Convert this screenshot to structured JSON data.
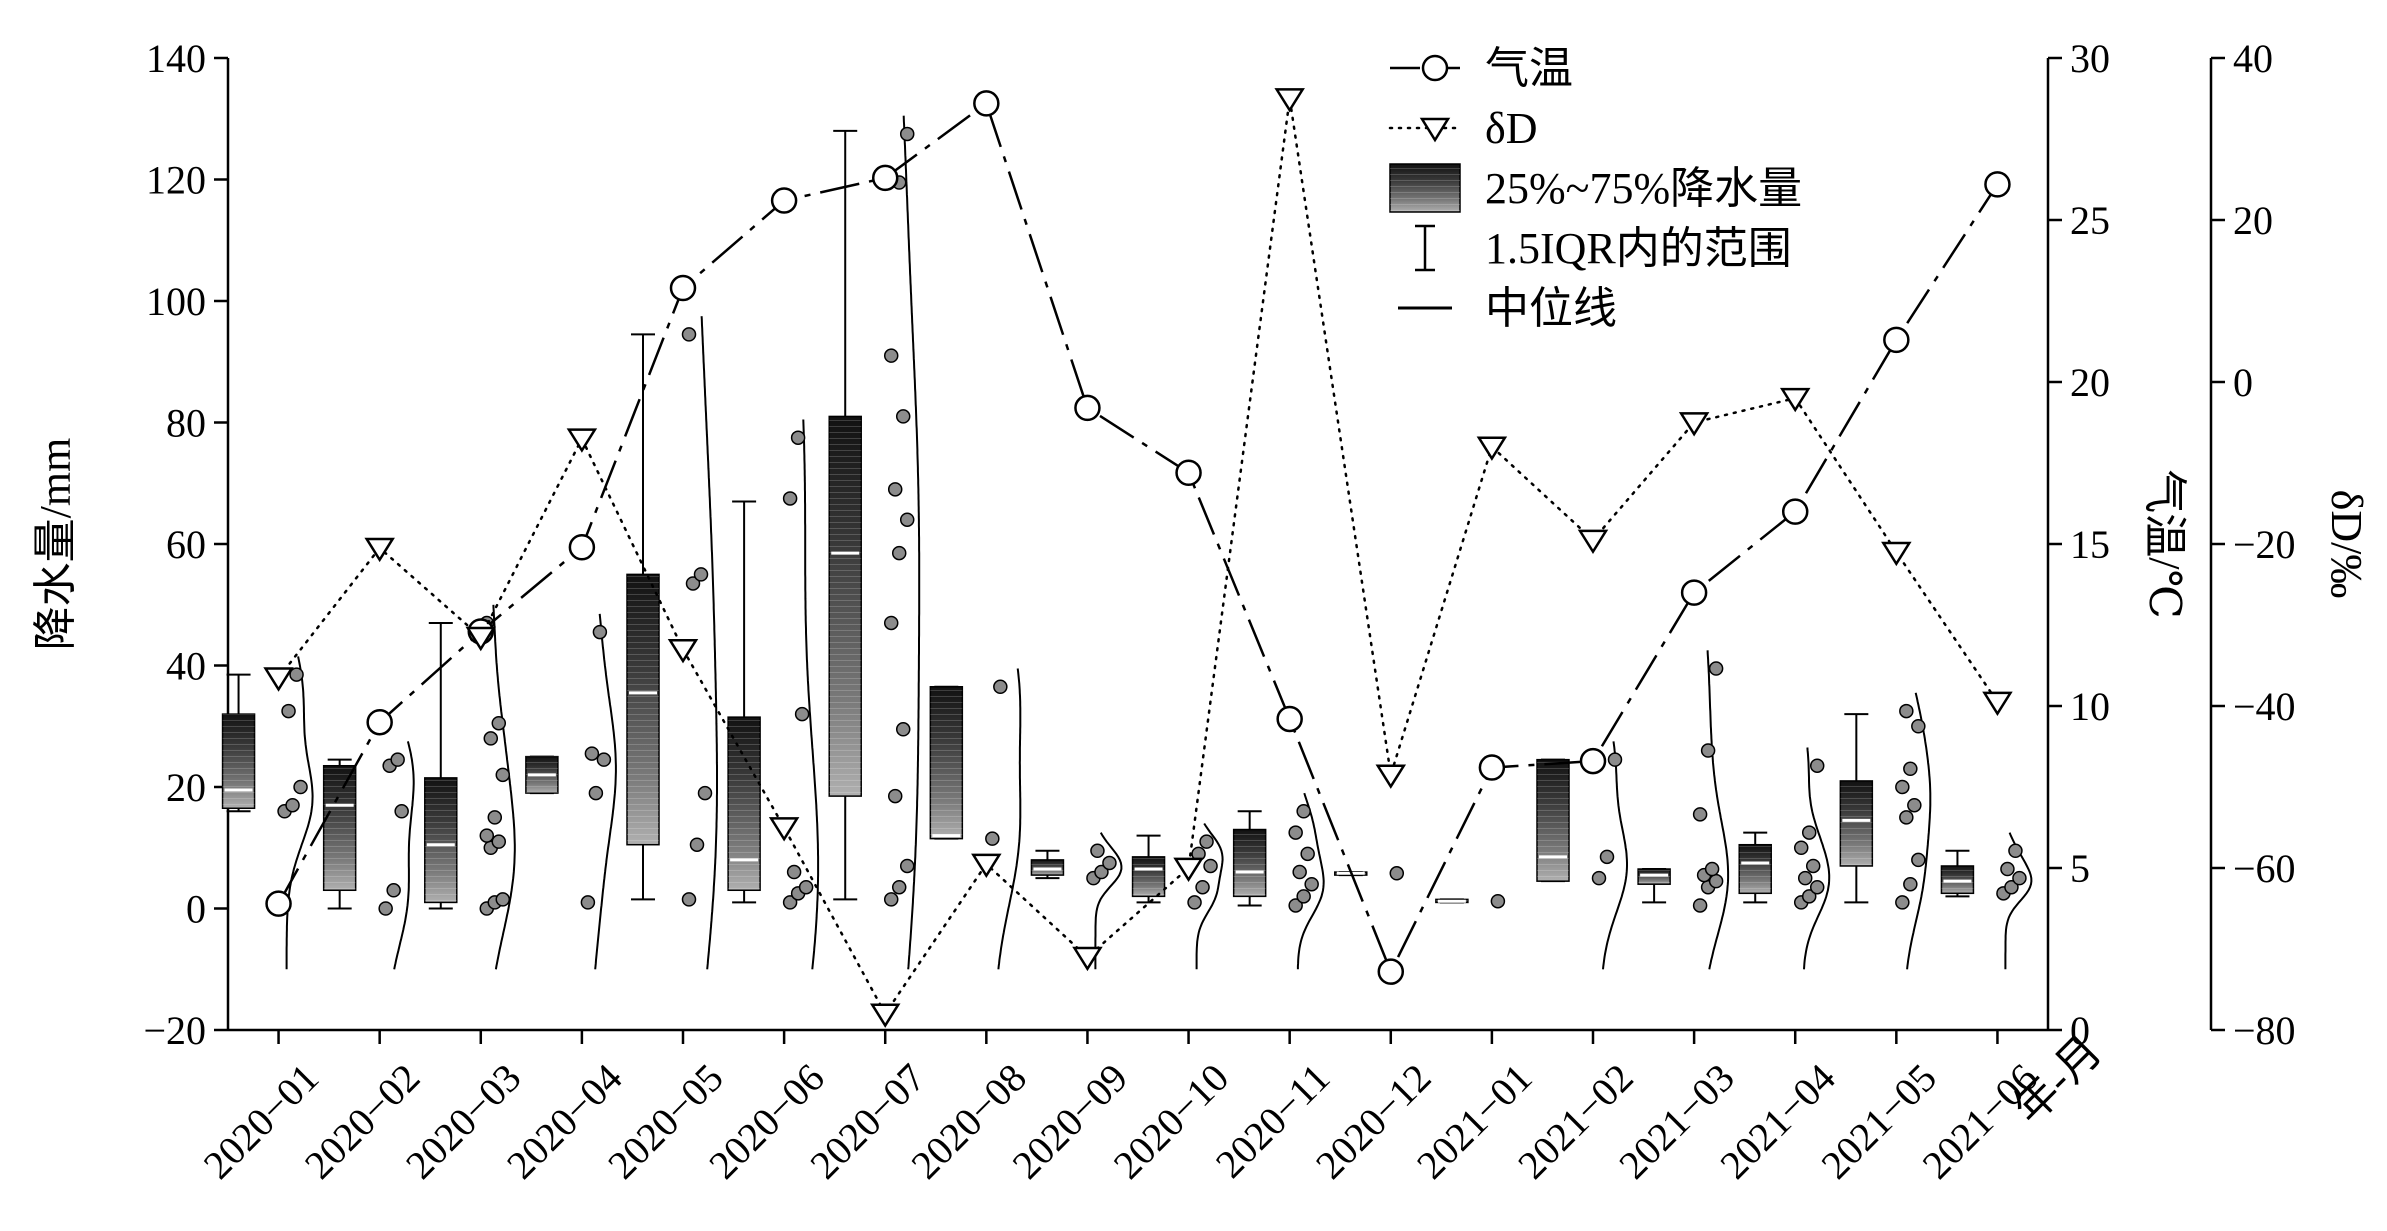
{
  "chart_data": {
    "type": "box+line",
    "title": "",
    "categories": [
      "2020-01",
      "2020-02",
      "2020-03",
      "2020-04",
      "2020-05",
      "2020-06",
      "2020-07",
      "2020-08",
      "2020-09",
      "2020-10",
      "2020-11",
      "2020-12",
      "2021-01",
      "2021-02",
      "2021-03",
      "2021-04",
      "2021-05",
      "2021-06"
    ],
    "xlabel": "年-月",
    "ylabel_left": "降水量/mm",
    "ylabel_right1": "气温/℃",
    "ylabel_right2": "δD/‰",
    "ylim_left": [
      -20,
      140
    ],
    "ylim_right1": [
      0,
      30
    ],
    "ylim_right2": [
      -80,
      40
    ],
    "yticks_left": [
      "-20",
      "0",
      "20",
      "40",
      "60",
      "80",
      "100",
      "120",
      "140"
    ],
    "yticks_right1": [
      "0",
      "5",
      "10",
      "15",
      "20",
      "25",
      "30"
    ],
    "yticks_right2": [
      "-80",
      "-60",
      "-40",
      "-20",
      "0",
      "20",
      "40"
    ],
    "legend": {
      "placement": "top-center",
      "items": [
        "气温",
        "δD",
        "25%~75%降水量",
        "1.5IQR内的范围",
        "中位线"
      ]
    },
    "precip_boxes": [
      {
        "q1": 16.5,
        "median": 19.5,
        "q3": 32,
        "wlo": 16,
        "whi": 38.5,
        "points": [
          16,
          17,
          20,
          32.5,
          38.5
        ]
      },
      {
        "q1": 3,
        "median": 17,
        "q3": 23.5,
        "wlo": 0,
        "whi": 24.5,
        "points": [
          0,
          3,
          16,
          23.5,
          24.5
        ]
      },
      {
        "q1": 1,
        "median": 10.5,
        "q3": 21.5,
        "wlo": 0,
        "whi": 47,
        "points": [
          0,
          1,
          1.5,
          10,
          11,
          12,
          15,
          22,
          28,
          30.5,
          47
        ]
      },
      {
        "q1": 19,
        "median": 22,
        "q3": 25,
        "wlo": 19,
        "whi": 25,
        "points": [
          1,
          19,
          24.5,
          25.5,
          45.5
        ]
      },
      {
        "q1": 10.5,
        "median": 35.5,
        "q3": 55,
        "wlo": 1.5,
        "whi": 94.5,
        "points": [
          1.5,
          10.5,
          19,
          53.5,
          55,
          94.5
        ]
      },
      {
        "q1": 3,
        "median": 8,
        "q3": 31.5,
        "wlo": 1,
        "whi": 67,
        "points": [
          1,
          2.5,
          3.5,
          6,
          32,
          67.5,
          77.5
        ]
      },
      {
        "q1": 18.5,
        "median": 58.5,
        "q3": 81,
        "wlo": 1.5,
        "whi": 128,
        "points": [
          1.5,
          3.5,
          7,
          18.5,
          29.5,
          47,
          58.5,
          64,
          69,
          81,
          91,
          119.5,
          127.5
        ]
      },
      {
        "q1": 11.5,
        "median": 12,
        "q3": 36.5,
        "wlo": 11.5,
        "whi": 36.5,
        "points": [
          11.5,
          36.5
        ]
      },
      {
        "q1": 5.5,
        "median": 6.5,
        "q3": 8,
        "wlo": 5,
        "whi": 9.5,
        "points": [
          5,
          6,
          7.5,
          9.5
        ]
      },
      {
        "q1": 2,
        "median": 6.5,
        "q3": 8.5,
        "wlo": 1,
        "whi": 12,
        "points": [
          1,
          3.5,
          7,
          9,
          11
        ]
      },
      {
        "q1": 2,
        "median": 6,
        "q3": 13,
        "wlo": 0.5,
        "whi": 16,
        "points": [
          0.5,
          2,
          4,
          6,
          9,
          12.5,
          16
        ]
      },
      {
        "q1": 5.5,
        "median": 5.8,
        "q3": 6,
        "wlo": 5.5,
        "whi": 6,
        "points": [
          5.8
        ]
      },
      {
        "q1": 1,
        "median": 1.2,
        "q3": 1.5,
        "wlo": 1,
        "whi": 1.5,
        "points": [
          1.2
        ]
      },
      {
        "q1": 4.5,
        "median": 8.5,
        "q3": 24.5,
        "wlo": 4.5,
        "whi": 24.5,
        "points": [
          5,
          8.5,
          24.5
        ]
      },
      {
        "q1": 4,
        "median": 5.5,
        "q3": 6.5,
        "wlo": 1,
        "whi": 6.5,
        "points": [
          0.5,
          3.5,
          4.5,
          5.5,
          6.5,
          15.5,
          26,
          39.5
        ]
      },
      {
        "q1": 2.5,
        "median": 7.5,
        "q3": 10.5,
        "wlo": 1,
        "whi": 12.5,
        "points": [
          1,
          2,
          3.5,
          5,
          7,
          10,
          12.5,
          23.5
        ]
      },
      {
        "q1": 7,
        "median": 14.5,
        "q3": 21,
        "wlo": 1,
        "whi": 32,
        "points": [
          1,
          4,
          8,
          15,
          17,
          20,
          23,
          30,
          32.5
        ]
      },
      {
        "q1": 2.5,
        "median": 4.5,
        "q3": 7,
        "wlo": 2,
        "whi": 9.5,
        "points": [
          2.5,
          3.5,
          5,
          6.5,
          9.5
        ]
      }
    ],
    "series": [
      {
        "name": "气温",
        "axis": "temperature",
        "values": [
          3.9,
          9.5,
          12.3,
          14.9,
          22.9,
          25.6,
          26.3,
          28.6,
          19.2,
          17.2,
          9.6,
          1.8,
          8.1,
          8.3,
          13.5,
          16.0,
          21.3,
          26.1
        ]
      },
      {
        "name": "δD",
        "axis": "deltaD",
        "values": [
          -36.5,
          -20.5,
          -31.5,
          -7,
          -33,
          -55,
          -78,
          -59.5,
          -71,
          -60,
          35,
          -48.5,
          -8,
          -19.5,
          -5,
          -2,
          -21,
          -39.5
        ]
      }
    ]
  }
}
